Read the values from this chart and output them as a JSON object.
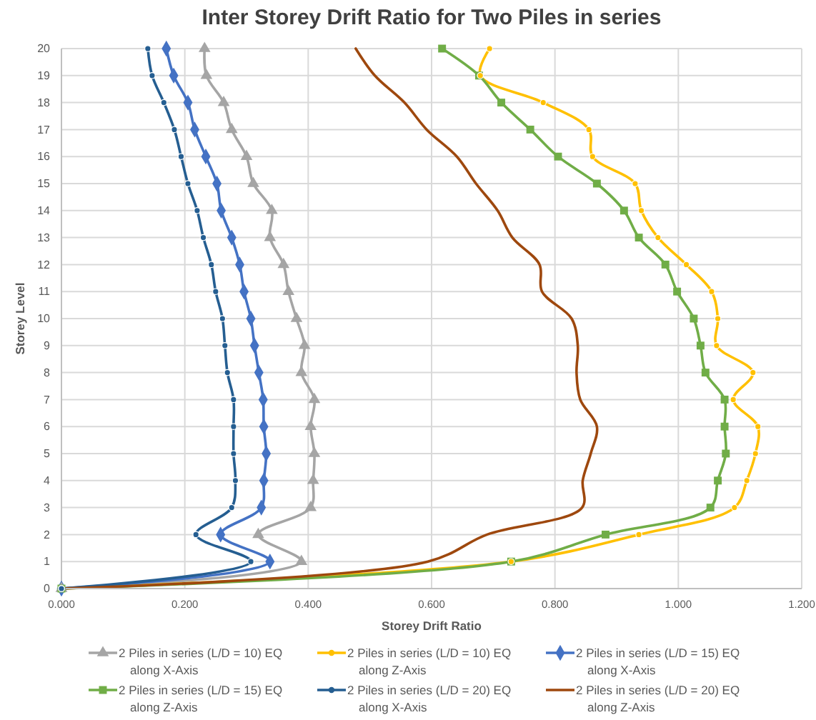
{
  "chart_data": {
    "type": "line",
    "title": "Inter Storey Drift Ratio for Two Piles in series",
    "xlabel": "Storey Drift Ratio",
    "ylabel": "Storey Level",
    "xlim": [
      0,
      1.2
    ],
    "xticks": [
      {
        "value": 0,
        "label": "0.000"
      },
      {
        "value": 0.2,
        "label": "0.200"
      },
      {
        "value": 0.4,
        "label": "0.400"
      },
      {
        "value": 0.6,
        "label": "0.600"
      },
      {
        "value": 0.8,
        "label": "0.800"
      },
      {
        "value": 1.0,
        "label": "1.000"
      },
      {
        "value": 1.2,
        "label": "1.200"
      }
    ],
    "ylim": [
      0,
      20
    ],
    "yticks": [
      0,
      1,
      2,
      3,
      4,
      5,
      6,
      7,
      8,
      9,
      10,
      11,
      12,
      13,
      14,
      15,
      16,
      17,
      18,
      19,
      20
    ],
    "grid": true,
    "legend": "bottom",
    "series": [
      {
        "name": "2 Piles in series (L/D = 10) EQ along X-Axis",
        "color": "#a5a5a5",
        "marker": "triangle",
        "x": [
          0,
          0.389,
          0.319,
          0.404,
          0.408,
          0.41,
          0.404,
          0.41,
          0.389,
          0.394,
          0.381,
          0.368,
          0.36,
          0.338,
          0.341,
          0.311,
          0.3,
          0.276,
          0.263,
          0.235,
          0.232
        ],
        "values": [
          0,
          1,
          2,
          3,
          4,
          5,
          6,
          7,
          8,
          9,
          10,
          11,
          12,
          13,
          14,
          15,
          16,
          17,
          18,
          19,
          20
        ]
      },
      {
        "name": "2 Piles in series (L/D = 10) EQ along Z-Axis",
        "color": "#ffc000",
        "marker": "circle",
        "x": [
          0,
          0.729,
          0.936,
          1.091,
          1.111,
          1.125,
          1.129,
          1.089,
          1.121,
          1.062,
          1.064,
          1.054,
          1.013,
          0.967,
          0.94,
          0.93,
          0.861,
          0.855,
          0.781,
          0.679,
          0.694
        ],
        "values": [
          0,
          1,
          2,
          3,
          4,
          5,
          6,
          7,
          8,
          9,
          10,
          11,
          12,
          13,
          14,
          15,
          16,
          17,
          18,
          19,
          20
        ]
      },
      {
        "name": "2 Piles in series (L/D = 15) EQ along X-Axis",
        "color": "#4472c4",
        "marker": "diamond",
        "x": [
          0,
          0.338,
          0.258,
          0.324,
          0.328,
          0.332,
          0.328,
          0.327,
          0.32,
          0.313,
          0.307,
          0.296,
          0.289,
          0.276,
          0.259,
          0.252,
          0.234,
          0.216,
          0.205,
          0.182,
          0.17
        ],
        "values": [
          0,
          1,
          2,
          3,
          4,
          5,
          6,
          7,
          8,
          9,
          10,
          11,
          12,
          13,
          14,
          15,
          16,
          17,
          18,
          19,
          20
        ]
      },
      {
        "name": "2 Piles in series (L/D = 15) EQ along Z-Axis",
        "color": "#70ad47",
        "marker": "square",
        "x": [
          0,
          0.729,
          0.882,
          1.052,
          1.064,
          1.077,
          1.075,
          1.075,
          1.044,
          1.036,
          1.025,
          0.998,
          0.979,
          0.936,
          0.912,
          0.868,
          0.805,
          0.76,
          0.713,
          0.677,
          0.617
        ],
        "values": [
          0,
          1,
          2,
          3,
          4,
          5,
          6,
          7,
          8,
          9,
          10,
          11,
          12,
          13,
          14,
          15,
          16,
          17,
          18,
          19,
          20
        ]
      },
      {
        "name": "2 Piles in series (L/D = 20) EQ along X-Axis",
        "color": "#255e91",
        "marker": "circle",
        "x": [
          0,
          0.307,
          0.218,
          0.276,
          0.282,
          0.279,
          0.279,
          0.279,
          0.269,
          0.265,
          0.261,
          0.25,
          0.243,
          0.23,
          0.22,
          0.205,
          0.194,
          0.183,
          0.166,
          0.147,
          0.14
        ],
        "values": [
          0,
          1,
          2,
          3,
          4,
          5,
          6,
          7,
          8,
          9,
          10,
          11,
          12,
          13,
          14,
          15,
          16,
          17,
          18,
          19,
          20
        ]
      },
      {
        "name": "2 Piles in series (L/D = 20) EQ along Z-Axis",
        "color": "#9e480e",
        "marker": "none",
        "x": [
          0,
          0.594,
          0.69,
          0.844,
          0.845,
          0.858,
          0.868,
          0.841,
          0.835,
          0.837,
          0.827,
          0.779,
          0.775,
          0.731,
          0.707,
          0.672,
          0.641,
          0.592,
          0.556,
          0.508,
          0.477
        ],
        "values": [
          0,
          1,
          2,
          3,
          4,
          5,
          6,
          7,
          8,
          9,
          10,
          11,
          12,
          13,
          14,
          15,
          16,
          17,
          18,
          19,
          20
        ]
      }
    ]
  }
}
